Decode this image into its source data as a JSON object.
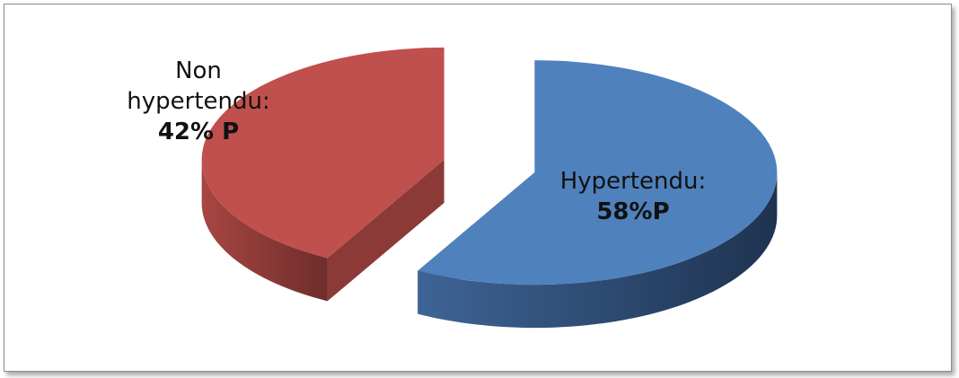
{
  "chart_data": {
    "type": "pie",
    "title": "",
    "style": "3d-exploded",
    "legend": "none",
    "slices": [
      {
        "name": "Hypertendu",
        "value": 58,
        "label_lines": [
          "Hypertendu:"
        ],
        "value_label": "58%P",
        "color": "#4f81bd",
        "side_color": "#2c4a70"
      },
      {
        "name": "Non hypertendu",
        "value": 42,
        "label_lines": [
          "Non",
          "hypertendu:"
        ],
        "value_label": "42% P",
        "color": "#c0504d",
        "side_color": "#8b3a37"
      }
    ]
  }
}
